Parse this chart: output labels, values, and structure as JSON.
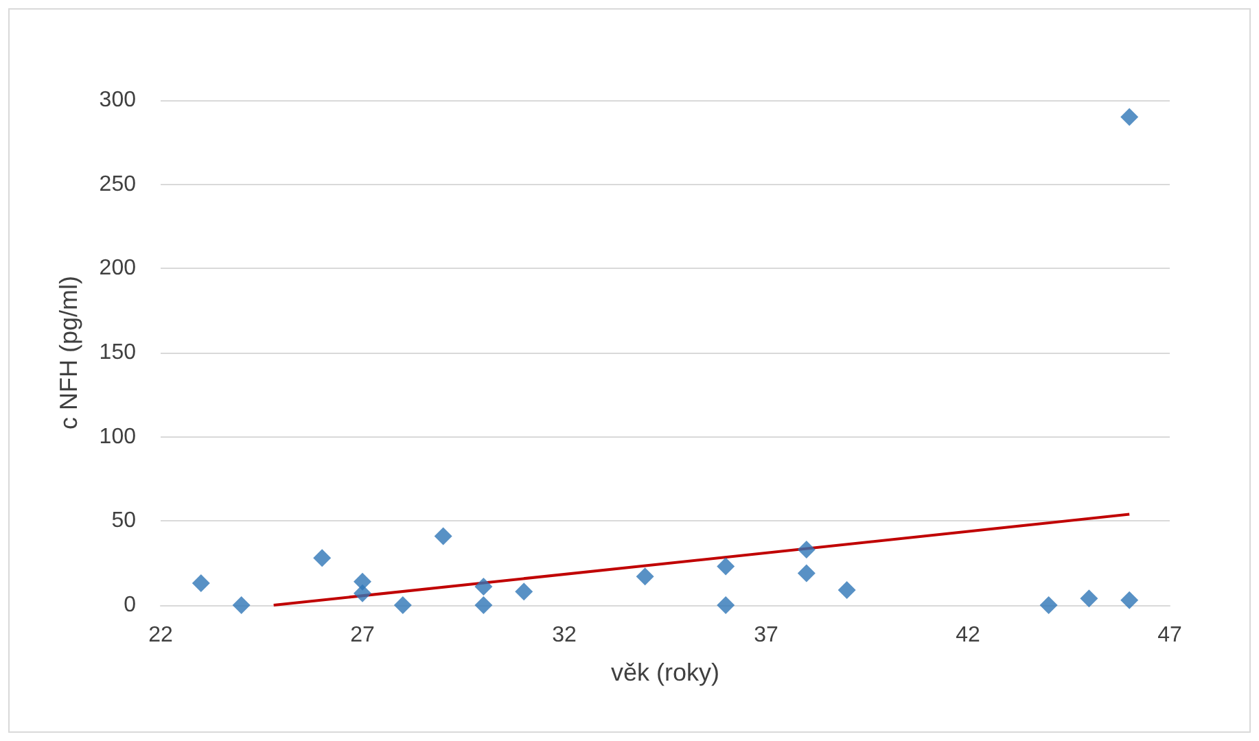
{
  "chart_data": {
    "type": "scatter",
    "xlabel": "věk (roky)",
    "ylabel": "c NFH (pg/ml)",
    "xlim": [
      22,
      47
    ],
    "xticks": [
      22,
      27,
      32,
      37,
      42,
      47
    ],
    "ylim": [
      0,
      300
    ],
    "yticks": [
      0,
      50,
      100,
      150,
      200,
      250,
      300
    ],
    "grid": "y",
    "marker": "diamond",
    "series": [
      {
        "color": "#2e75b6",
        "x": [
          23,
          24,
          26,
          27,
          27,
          28,
          29,
          30,
          30,
          31,
          34,
          36,
          36,
          38,
          38,
          39,
          44,
          45,
          46,
          46
        ],
        "values": [
          13,
          0,
          28,
          14,
          7,
          0,
          41,
          11,
          0,
          8,
          17,
          23,
          0,
          33,
          19,
          9,
          0,
          4,
          3,
          290
        ]
      },
      {
        "type": "line",
        "marker": "none",
        "color": "#c00000",
        "x": [
          24.8,
          46
        ],
        "values": [
          0,
          54
        ]
      }
    ]
  }
}
